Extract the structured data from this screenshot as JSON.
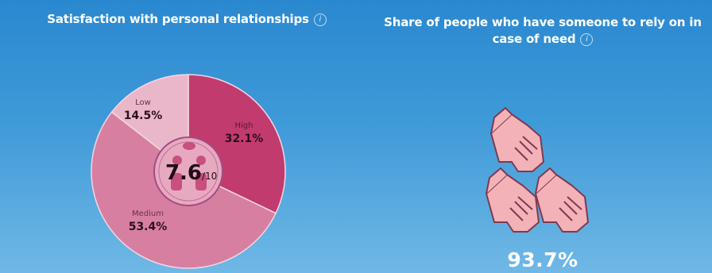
{
  "chart_data": [
    {
      "type": "pie",
      "title": "Satisfaction with personal relationships",
      "center_value": "7.6",
      "center_scale": "/10",
      "categories": [
        "High",
        "Medium",
        "Low"
      ],
      "values": [
        32.1,
        53.4,
        14.5
      ],
      "value_labels": [
        "32.1%",
        "53.4%",
        "14.5%"
      ],
      "colors": [
        "#c13b6f",
        "#d77fa1",
        "#eab7ca"
      ]
    },
    {
      "type": "table",
      "title": "Share of people who have someone to rely on in case of need",
      "value": 93.7,
      "value_label": "93.7%"
    }
  ],
  "icons": {
    "info": "i",
    "center": "people-icon",
    "hands": "hands-icon"
  }
}
